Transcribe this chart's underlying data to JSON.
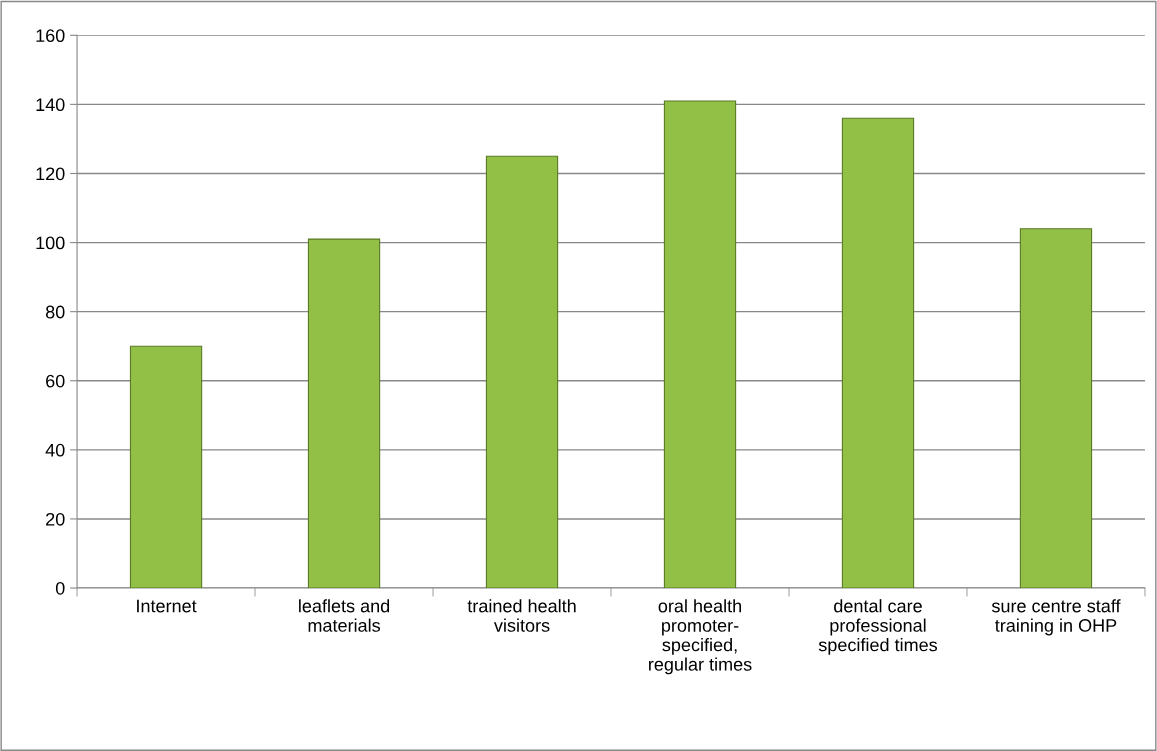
{
  "chart_data": {
    "type": "bar",
    "categories": [
      "Internet",
      "leaflets and\nmaterials",
      "trained health\nvisitors",
      "oral health\npromoter-\nspecified,\nregular times",
      "dental care\nprofessional\nspecified times",
      "sure centre staff\ntraining in OHP"
    ],
    "values": [
      70,
      101,
      125,
      141,
      136,
      104
    ],
    "color": "#92bf45",
    "ylim": [
      0,
      160
    ],
    "yticks": [
      0,
      20,
      40,
      60,
      80,
      100,
      120,
      140,
      160
    ],
    "grid": "y"
  }
}
